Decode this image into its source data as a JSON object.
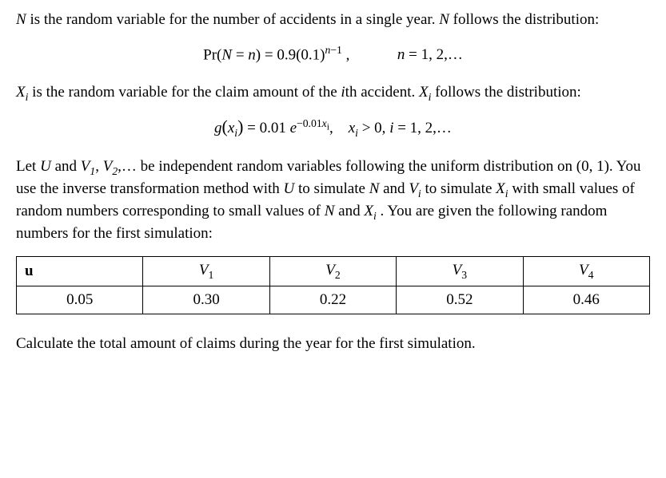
{
  "p1": {
    "a": "N",
    "b": " is the random variable for the number of accidents in a single year.  ",
    "c": "N",
    "d": " follows the distribution:"
  },
  "eq1": {
    "lhs_a": "Pr(",
    "lhs_b": "N",
    "lhs_c": " = ",
    "lhs_d": "n",
    "lhs_e": ") = 0.9(0.1)",
    "exp1": "n",
    "exp2": "−",
    "exp3": "1",
    "comma": " ,",
    "rhs_a": "n",
    "rhs_b": " = 1, 2,…"
  },
  "p2": {
    "a": "X",
    "asub": "i",
    "b": " is the random variable for the claim amount of the ",
    "c": "i",
    "d": "th accident.   ",
    "e": "X",
    "esub": "i",
    "f": " follows the distribution:"
  },
  "eq2": {
    "a": "g",
    "b": "(",
    "c": "x",
    "csub": "i",
    "d": ")",
    "e": " = 0.01 ",
    "f": "e",
    "exp": "−0.01",
    "exp_x": "x",
    "exp_sub": "i",
    "g": ",    ",
    "h": "x",
    "hsub": "i",
    "i": " > 0,   ",
    "j": "i",
    "k": " = 1, 2,…"
  },
  "p3": {
    "a": "Let ",
    "b": "U",
    "c": " and ",
    "d": "V",
    "d1sub": "1",
    "e": ", ",
    "f": "V",
    "f2sub": "2",
    "g": ",… be independent random variables following the uniform distribution on (0, 1).  You use the inverse transformation method with ",
    "h": "U",
    "i": " to simulate ",
    "j": "N",
    "k": " and ",
    "l": "V",
    "lsub": "i",
    "m": " to simulate ",
    "n": "X",
    "nsub": "i",
    "o": " with small values of random numbers corresponding to small values of ",
    "p": "N",
    "q": " and  ",
    "r": "X",
    "rsub": "i",
    "s": " . You are given the following random numbers for the first simulation:"
  },
  "table": {
    "headers": {
      "u": "u",
      "v1_v": "V",
      "v1_s": "1",
      "v2_v": "V",
      "v2_s": "2",
      "v3_v": "V",
      "v3_s": "3",
      "v4_v": "V",
      "v4_s": "4"
    },
    "values": {
      "u": "0.05",
      "v1": "0.30",
      "v2": "0.22",
      "v3": "0.52",
      "v4": "0.46"
    },
    "col_widths": [
      "20%",
      "20%",
      "20%",
      "20%",
      "20%"
    ]
  },
  "p4": "Calculate the total amount of claims during the year for the first simulation.",
  "style": {
    "font_family": "Times New Roman",
    "base_fontsize_pt": 14,
    "text_color": "#000000",
    "background_color": "#ffffff",
    "table_border_color": "#000000"
  }
}
